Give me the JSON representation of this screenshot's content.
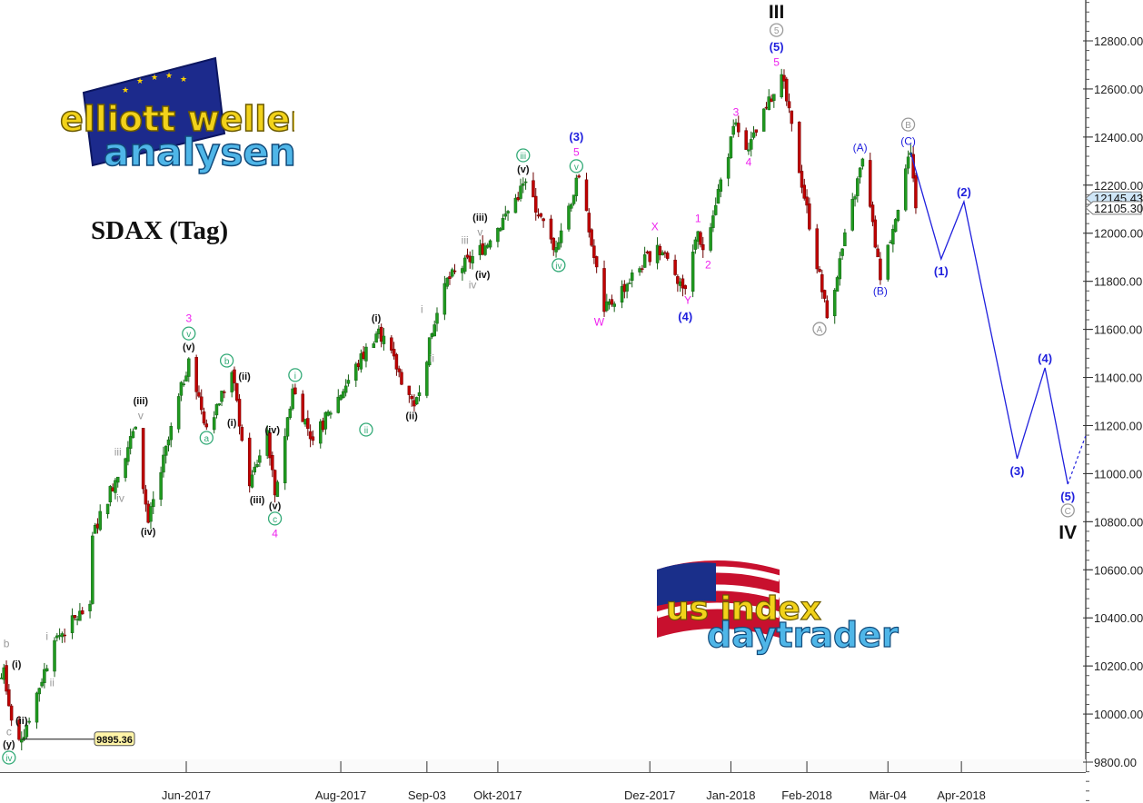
{
  "chart_data": {
    "type": "candlestick",
    "title": "SDAX (Tag)",
    "logos": [
      "elliott wellen analysen",
      "us index daytrader"
    ],
    "colors": {
      "up": "#1f9a1f",
      "down": "#c00000",
      "projection": "#1f1fdd",
      "last_price_box": "#cfe6f7"
    },
    "y_axis": {
      "position": "right",
      "range": [
        9620,
        12980
      ],
      "ticks": [
        9800,
        10000,
        10200,
        10400,
        10600,
        10800,
        11000,
        11200,
        11400,
        11600,
        11800,
        12000,
        12200,
        12400,
        12600,
        12800
      ],
      "tick_labels": [
        "9800.00",
        "10000.00",
        "10200.00",
        "10400.00",
        "10600.00",
        "10800.00",
        "11000.00",
        "11200.00",
        "11400.00",
        "11600.00",
        "11800.00",
        "12000.00",
        "12200.00",
        "12400.00",
        "12600.00",
        "12800.00"
      ]
    },
    "x_axis": {
      "range": [
        "2017-03-19",
        "2018-05-22"
      ],
      "ticks": [
        {
          "label": "Jun-2017",
          "date": "2017-06-01"
        },
        {
          "label": "Aug-2017",
          "date": "2017-08-01"
        },
        {
          "label": "Sep-03",
          "date": "2017-09-04"
        },
        {
          "label": "Okt-2017",
          "date": "2017-10-02"
        },
        {
          "label": "Dez-2017",
          "date": "2017-12-01"
        },
        {
          "label": "Jan-2018",
          "date": "2018-01-02"
        },
        {
          "label": "Feb-2018",
          "date": "2018-02-01"
        },
        {
          "label": "Mär-04",
          "date": "2018-03-05"
        },
        {
          "label": "Apr-2018",
          "date": "2018-04-03"
        }
      ]
    },
    "swing_points": [
      [
        "2017-03-20",
        10150
      ],
      [
        "2017-03-21",
        10193
      ],
      [
        "2017-03-24",
        9974
      ],
      [
        "2017-03-28",
        9895
      ],
      [
        "2017-04-10",
        10306
      ],
      [
        "2017-04-24",
        10457
      ],
      [
        "2017-04-25",
        10741
      ],
      [
        "2017-05-12",
        11194
      ],
      [
        "2017-05-17",
        10797
      ],
      [
        "2017-06-02",
        11478
      ],
      [
        "2017-06-09",
        11194
      ],
      [
        "2017-06-19",
        11421
      ],
      [
        "2017-06-26",
        10949
      ],
      [
        "2017-07-03",
        11180
      ],
      [
        "2017-07-06",
        10911
      ],
      [
        "2017-07-13",
        11353
      ],
      [
        "2017-07-21",
        11138
      ],
      [
        "2017-08-16",
        11602
      ],
      [
        "2017-08-30",
        11281
      ],
      [
        "2017-09-11",
        11791
      ],
      [
        "2017-09-29",
        11969
      ],
      [
        "2017-10-13",
        12214
      ],
      [
        "2017-10-24",
        11931
      ],
      [
        "2017-11-03",
        12233
      ],
      [
        "2017-11-13",
        11674
      ],
      [
        "2017-12-04",
        11950
      ],
      [
        "2017-12-15",
        11769
      ],
      [
        "2017-12-20",
        12007
      ],
      [
        "2017-12-22",
        11931
      ],
      [
        "2018-01-04",
        12460
      ],
      [
        "2018-01-09",
        12347
      ],
      [
        "2018-01-22",
        12660
      ],
      [
        "2018-02-09",
        11648
      ],
      [
        "2018-02-23",
        12309
      ],
      [
        "2018-03-02",
        11806
      ],
      [
        "2018-03-14",
        12335
      ],
      [
        "2018-03-16",
        12105
      ]
    ],
    "last_prices": [
      {
        "label": "12145.43",
        "value": 12145.43,
        "style": "blue"
      },
      {
        "label": "12105.30",
        "value": 12105.3,
        "style": "white"
      }
    ],
    "marked_low": {
      "label": "9895.36",
      "value": 9895.36,
      "date": "2017-03-28"
    },
    "projection": [
      [
        "2018-03-14",
        12335
      ],
      [
        "2018-03-26",
        11893
      ],
      [
        "2018-04-04",
        12131
      ],
      [
        "2018-04-25",
        11062
      ],
      [
        "2018-05-06",
        11440
      ],
      [
        "2018-05-15",
        10956
      ]
    ],
    "projection_dashed": [
      [
        "2018-05-15",
        10956
      ],
      [
        "2018-05-22",
        11156
      ]
    ],
    "wave_labels": [
      {
        "text": "b",
        "date": "2017-03-22",
        "price": 10295,
        "color": "#999999",
        "style": "plain"
      },
      {
        "text": "(i)",
        "date": "2017-03-26",
        "price": 10208,
        "color": "#111111",
        "style": "bold"
      },
      {
        "text": "i",
        "date": "2017-04-07",
        "price": 10325,
        "color": "#999999",
        "style": "plain"
      },
      {
        "text": "ii",
        "date": "2017-04-09",
        "price": 10132,
        "color": "#999999",
        "style": "plain"
      },
      {
        "text": "(ii)",
        "date": "2017-03-28",
        "price": 9974,
        "color": "#111111",
        "style": "bold"
      },
      {
        "text": "c",
        "date": "2017-03-23",
        "price": 9929,
        "color": "#999999",
        "style": "plain"
      },
      {
        "text": "(y)",
        "date": "2017-03-23",
        "price": 9876,
        "color": "#111111",
        "style": "bold"
      },
      {
        "text": "iv",
        "date": "2017-03-23",
        "price": 9819,
        "color": "#33aa77",
        "style": "circle"
      },
      {
        "text": "iii",
        "date": "2017-05-05",
        "price": 11092,
        "color": "#999999",
        "style": "plain"
      },
      {
        "text": "iv",
        "date": "2017-05-06",
        "price": 10899,
        "color": "#999999",
        "style": "plain"
      },
      {
        "text": "v",
        "date": "2017-05-14",
        "price": 11243,
        "color": "#999999",
        "style": "plain"
      },
      {
        "text": "(iii)",
        "date": "2017-05-14",
        "price": 11304,
        "color": "#111111",
        "style": "bold"
      },
      {
        "text": "(iv)",
        "date": "2017-05-17",
        "price": 10760,
        "color": "#111111",
        "style": "bold"
      },
      {
        "text": "3",
        "date": "2017-06-02",
        "price": 11648,
        "color": "#ee22ee",
        "style": "plain"
      },
      {
        "text": "v",
        "date": "2017-06-02",
        "price": 11583,
        "color": "#33aa77",
        "style": "circle"
      },
      {
        "text": "(v)",
        "date": "2017-06-02",
        "price": 11530,
        "color": "#111111",
        "style": "bold"
      },
      {
        "text": "a",
        "date": "2017-06-09",
        "price": 11149,
        "color": "#33aa77",
        "style": "circle"
      },
      {
        "text": "b",
        "date": "2017-06-17",
        "price": 11470,
        "color": "#33aa77",
        "style": "circle"
      },
      {
        "text": "(ii)",
        "date": "2017-06-24",
        "price": 11406,
        "color": "#111111",
        "style": "bold"
      },
      {
        "text": "(i)",
        "date": "2017-06-19",
        "price": 11213,
        "color": "#111111",
        "style": "bold"
      },
      {
        "text": "(iv)",
        "date": "2017-07-05",
        "price": 11183,
        "color": "#111111",
        "style": "bold"
      },
      {
        "text": "(iii)",
        "date": "2017-06-29",
        "price": 10892,
        "color": "#111111",
        "style": "bold"
      },
      {
        "text": "(v)",
        "date": "2017-07-06",
        "price": 10869,
        "color": "#111111",
        "style": "bold"
      },
      {
        "text": "c",
        "date": "2017-07-06",
        "price": 10813,
        "color": "#33aa77",
        "style": "circle"
      },
      {
        "text": "4",
        "date": "2017-07-06",
        "price": 10752,
        "color": "#ee22ee",
        "style": "plain"
      },
      {
        "text": "i",
        "date": "2017-07-14",
        "price": 11410,
        "color": "#33aa77",
        "style": "circle"
      },
      {
        "text": "ii",
        "date": "2017-08-11",
        "price": 11183,
        "color": "#33aa77",
        "style": "circle"
      },
      {
        "text": "(i)",
        "date": "2017-08-15",
        "price": 11648,
        "color": "#111111",
        "style": "bold"
      },
      {
        "text": "(ii)",
        "date": "2017-08-29",
        "price": 11243,
        "color": "#111111",
        "style": "bold"
      },
      {
        "text": "i",
        "date": "2017-09-02",
        "price": 11686,
        "color": "#999999",
        "style": "plain"
      },
      {
        "text": "ii",
        "date": "2017-09-06",
        "price": 11481,
        "color": "#999999",
        "style": "plain"
      },
      {
        "text": "(iii)",
        "date": "2017-09-25",
        "price": 12067,
        "color": "#111111",
        "style": "bold"
      },
      {
        "text": "iii",
        "date": "2017-09-19",
        "price": 11973,
        "color": "#999999",
        "style": "plain"
      },
      {
        "text": "v",
        "date": "2017-09-25",
        "price": 12007,
        "color": "#999999",
        "style": "plain"
      },
      {
        "text": "(iv)",
        "date": "2017-09-26",
        "price": 11829,
        "color": "#111111",
        "style": "bold"
      },
      {
        "text": "iv",
        "date": "2017-09-22",
        "price": 11787,
        "color": "#999999",
        "style": "plain"
      },
      {
        "text": "iii",
        "date": "2017-10-12",
        "price": 12324,
        "color": "#33aa77",
        "style": "circle"
      },
      {
        "text": "(v)",
        "date": "2017-10-12",
        "price": 12267,
        "color": "#111111",
        "style": "bold"
      },
      {
        "text": "(3)",
        "date": "2017-11-02",
        "price": 12403,
        "color": "#1f1fdd",
        "style": "bold-big"
      },
      {
        "text": "5",
        "date": "2017-11-02",
        "price": 12339,
        "color": "#ee22ee",
        "style": "plain"
      },
      {
        "text": "v",
        "date": "2017-11-02",
        "price": 12279,
        "color": "#33aa77",
        "style": "circle"
      },
      {
        "text": "iv",
        "date": "2017-10-26",
        "price": 11867,
        "color": "#33aa77",
        "style": "circle"
      },
      {
        "text": "W",
        "date": "2017-11-11",
        "price": 11633,
        "color": "#ee22ee",
        "style": "plain"
      },
      {
        "text": "X",
        "date": "2017-12-03",
        "price": 12029,
        "color": "#ee22ee",
        "style": "plain"
      },
      {
        "text": "Y",
        "date": "2017-12-16",
        "price": 11723,
        "color": "#ee22ee",
        "style": "plain"
      },
      {
        "text": "(4)",
        "date": "2017-12-15",
        "price": 11655,
        "color": "#1f1fdd",
        "style": "bold-big"
      },
      {
        "text": "1",
        "date": "2017-12-20",
        "price": 12063,
        "color": "#ee22ee",
        "style": "plain"
      },
      {
        "text": "2",
        "date": "2017-12-24",
        "price": 11871,
        "color": "#ee22ee",
        "style": "plain"
      },
      {
        "text": "3",
        "date": "2018-01-04",
        "price": 12505,
        "color": "#ee22ee",
        "style": "plain"
      },
      {
        "text": "4",
        "date": "2018-01-09",
        "price": 12297,
        "color": "#ee22ee",
        "style": "plain"
      },
      {
        "text": "5",
        "date": "2018-01-20",
        "price": 12713,
        "color": "#ee22ee",
        "style": "plain"
      },
      {
        "text": "(5)",
        "date": "2018-01-20",
        "price": 12777,
        "color": "#1f1fdd",
        "style": "bold-big"
      },
      {
        "text": "5",
        "date": "2018-01-20",
        "price": 12845,
        "color": "#999999",
        "style": "circle"
      },
      {
        "text": "III",
        "date": "2018-01-20",
        "price": 12925,
        "color": "#111111",
        "style": "roman"
      },
      {
        "text": "A",
        "date": "2018-02-06",
        "price": 11602,
        "color": "#999999",
        "style": "circle"
      },
      {
        "text": "(A)",
        "date": "2018-02-22",
        "price": 12358,
        "color": "#1f1fdd",
        "style": "plain"
      },
      {
        "text": "(B)",
        "date": "2018-03-02",
        "price": 11761,
        "color": "#1f1fdd",
        "style": "plain"
      },
      {
        "text": "B",
        "date": "2018-03-13",
        "price": 12452,
        "color": "#999999",
        "style": "circle"
      },
      {
        "text": "(C)",
        "date": "2018-03-13",
        "price": 12384,
        "color": "#1f1fdd",
        "style": "plain"
      },
      {
        "text": "(1)",
        "date": "2018-03-26",
        "price": 11844,
        "color": "#1f1fdd",
        "style": "bold-big"
      },
      {
        "text": "(2)",
        "date": "2018-04-04",
        "price": 12173,
        "color": "#1f1fdd",
        "style": "bold-big"
      },
      {
        "text": "(3)",
        "date": "2018-04-25",
        "price": 11013,
        "color": "#1f1fdd",
        "style": "bold-big"
      },
      {
        "text": "(4)",
        "date": "2018-05-06",
        "price": 11481,
        "color": "#1f1fdd",
        "style": "bold-big"
      },
      {
        "text": "(5)",
        "date": "2018-05-15",
        "price": 10907,
        "color": "#1f1fdd",
        "style": "bold-big"
      },
      {
        "text": "C",
        "date": "2018-05-15",
        "price": 10847,
        "color": "#999999",
        "style": "circle"
      },
      {
        "text": "IV",
        "date": "2018-05-15",
        "price": 10760,
        "color": "#111111",
        "style": "roman"
      }
    ]
  }
}
